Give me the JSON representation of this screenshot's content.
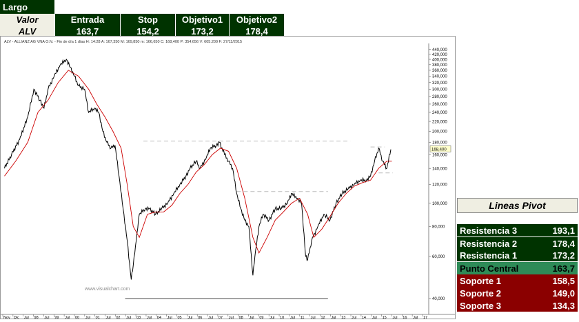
{
  "trade_table": {
    "direction": "Largo",
    "row_header": "Valor",
    "ticker": "ALV",
    "columns": [
      "Entrada",
      "Stop",
      "Objetivo1",
      "Objetivo2"
    ],
    "values": [
      "163,7",
      "154,2",
      "173,2",
      "178,4"
    ]
  },
  "chart_header": "ALV - ALLIANZ AG VNA O.N. - Fin de día 1 días  H: 14:28  A: 167,350  M: 169,850  m: 166,650  C: 168,400  P: 354,656  V: 605.209  F: 27/11/2015",
  "watermark": "www.visualchart.com",
  "chart_data": {
    "type": "line",
    "scale": "log",
    "title": "",
    "xlabel": "",
    "ylabel": "",
    "ylim": [
      35,
      460
    ],
    "xlim": [
      1996.8,
      2017.6
    ],
    "grid": false,
    "y_ticks": [
      "440,000",
      "420,000",
      "400,000",
      "380,000",
      "360,000",
      "340,000",
      "320,000",
      "300,000",
      "280,000",
      "260,000",
      "240,000",
      "220,000",
      "200,000",
      "180,000",
      "160,000",
      "140,000",
      "120,000",
      "100,000",
      "80,000",
      "60,000",
      "40,000"
    ],
    "x_tick_labels": [
      "Nov",
      "Dic",
      "Jul",
      "98",
      "Jul",
      "99",
      "Jul",
      "00",
      "Jul",
      "01",
      "Jul",
      "02",
      "Jul",
      "03",
      "Jul",
      "04",
      "Jul",
      "05",
      "Jul",
      "06",
      "Jul",
      "07",
      "Jul",
      "08",
      "Jul",
      "09",
      "Jul",
      "10",
      "Jul",
      "11",
      "Jul",
      "12",
      "Jul",
      "13",
      "Jul",
      "14",
      "Jul",
      "15",
      "Jul",
      "16",
      "Jul",
      "17"
    ],
    "last_price_label": "168,400",
    "last_price": 168.4,
    "series": [
      {
        "x": [
          1996.85,
          1997.2,
          1997.6,
          1998.0,
          1998.3,
          1998.6,
          1998.8,
          1999.0,
          1999.3,
          1999.6,
          1999.9,
          2000.1,
          2000.3,
          2000.5,
          2000.8,
          2001.0,
          2001.3,
          2001.5,
          2001.7,
          2001.9,
          2002.1,
          2002.3,
          2002.5,
          2002.7,
          2002.9,
          2003.1,
          2003.2,
          2003.35,
          2003.5,
          2003.8,
          2004.0,
          2004.3,
          2004.6,
          2004.9,
          2005.2,
          2005.5,
          2005.8,
          2006.0,
          2006.3,
          2006.5,
          2006.8,
          2007.0,
          2007.3,
          2007.45,
          2007.7,
          2007.9,
          2008.1,
          2008.3,
          2008.5,
          2008.7,
          2008.9,
          2009.1,
          2009.2,
          2009.4,
          2009.6,
          2009.9,
          2010.2,
          2010.5,
          2010.8,
          2011.0,
          2011.3,
          2011.5,
          2011.7,
          2011.8,
          2012.0,
          2012.3,
          2012.6,
          2012.9,
          2013.2,
          2013.5,
          2013.8,
          2014.1,
          2014.4,
          2014.7,
          2014.9,
          2015.1,
          2015.3,
          2015.5,
          2015.7,
          2015.9
        ],
        "y": [
          140,
          160,
          185,
          230,
          300,
          270,
          250,
          300,
          340,
          380,
          400,
          370,
          340,
          310,
          300,
          240,
          250,
          240,
          200,
          180,
          170,
          175,
          130,
          95,
          70,
          48,
          55,
          70,
          90,
          95,
          95,
          90,
          95,
          100,
          110,
          120,
          130,
          140,
          150,
          140,
          155,
          170,
          175,
          180,
          160,
          150,
          140,
          110,
          95,
          85,
          80,
          50,
          60,
          80,
          90,
          85,
          95,
          95,
          100,
          110,
          105,
          100,
          60,
          58,
          70,
          80,
          90,
          85,
          100,
          110,
          115,
          120,
          125,
          125,
          130,
          150,
          170,
          150,
          140,
          168
        ]
      },
      {
        "name": "",
        "x": [
          1996.85,
          1997.4,
          1998.0,
          1998.5,
          1999.0,
          1999.5,
          2000.0,
          2000.5,
          2001.0,
          2001.4,
          2001.8,
          2002.2,
          2002.6,
          2002.9,
          2003.2,
          2003.5,
          2003.9,
          2004.3,
          2004.7,
          2005.1,
          2005.5,
          2005.9,
          2006.3,
          2006.7,
          2007.1,
          2007.5,
          2007.9,
          2008.3,
          2008.7,
          2009.1,
          2009.4,
          2009.8,
          2010.2,
          2010.6,
          2011.0,
          2011.4,
          2011.8,
          2012.1,
          2012.5,
          2012.9,
          2013.3,
          2013.7,
          2014.1,
          2014.5,
          2014.9,
          2015.3,
          2015.7,
          2015.95
        ],
        "y": [
          130,
          150,
          180,
          240,
          270,
          320,
          360,
          340,
          300,
          260,
          230,
          200,
          170,
          120,
          80,
          72,
          90,
          92,
          92,
          98,
          110,
          120,
          135,
          145,
          160,
          170,
          165,
          140,
          105,
          72,
          62,
          72,
          85,
          92,
          100,
          105,
          90,
          72,
          78,
          88,
          100,
          110,
          118,
          122,
          125,
          140,
          150,
          150
        ]
      }
    ],
    "levels": [
      {
        "y": 182,
        "x": [
          2003.7,
          2013.9
        ]
      },
      {
        "y": 112,
        "x": [
          2008.3,
          2012.8
        ]
      },
      {
        "y": 172,
        "x": [
          2014.9,
          2015.6
        ]
      },
      {
        "y": 134,
        "x": [
          2015.3,
          2016.0
        ]
      },
      {
        "y": 40,
        "x": [
          2002.8,
          2012.8
        ]
      }
    ]
  },
  "pivot": {
    "title": "Lineas Pivot",
    "rows": [
      {
        "label": "Resistencia 3",
        "value": "193,1",
        "kind": "r"
      },
      {
        "label": "Resistencia 2",
        "value": "178,4",
        "kind": "r"
      },
      {
        "label": "Resistencia 1",
        "value": "173,2",
        "kind": "r"
      },
      {
        "label": "Punto Central",
        "value": "163,7",
        "kind": "c"
      },
      {
        "label": "Soporte 1",
        "value": "158,5",
        "kind": "s"
      },
      {
        "label": "Soporte 2",
        "value": "149,0",
        "kind": "s"
      },
      {
        "label": "Soporte 3",
        "value": "134,3",
        "kind": "s"
      }
    ]
  },
  "colors": {
    "dark_green": "#003300",
    "mid_green": "#2e8b57",
    "dark_red": "#8b0000",
    "ma_line": "#cc0000",
    "price": "#000000",
    "level": "#bbbbbb"
  }
}
